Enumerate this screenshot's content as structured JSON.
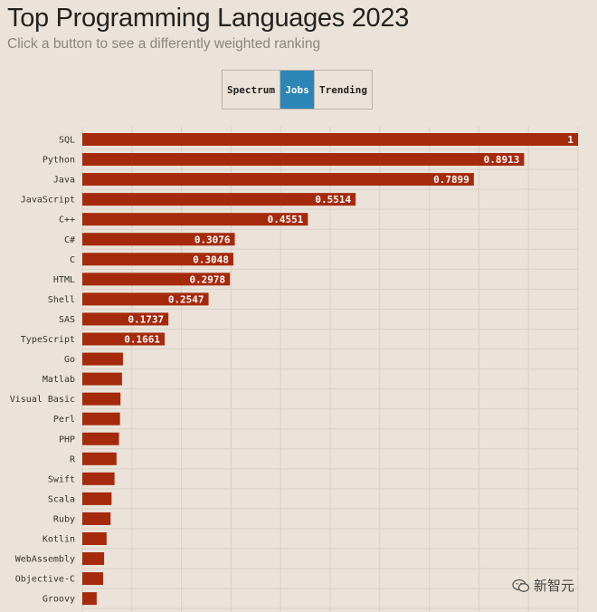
{
  "header": {
    "title": "Top Programming Languages 2023",
    "subtitle": "Click a button to see a differently weighted ranking"
  },
  "buttons": [
    {
      "label": "Spectrum",
      "active": false
    },
    {
      "label": "Jobs",
      "active": true
    },
    {
      "label": "Trending",
      "active": false
    }
  ],
  "colors": {
    "bar": "#a52a0b",
    "active_button": "#2b86b6",
    "background": "#ebe3d9",
    "grid": "#d8d1c8"
  },
  "watermark": {
    "text": "新智元",
    "icon": "wechat-icon"
  },
  "chart_data": {
    "type": "bar",
    "orientation": "horizontal",
    "title": "Top Programming Languages 2023",
    "xlim": [
      0,
      1
    ],
    "grid": true,
    "categories": [
      "SQL",
      "Python",
      "Java",
      "JavaScript",
      "C++",
      "C#",
      "C",
      "HTML",
      "Shell",
      "SAS",
      "TypeScript",
      "Go",
      "Matlab",
      "Visual Basic",
      "Perl",
      "PHP",
      "R",
      "Swift",
      "Scala",
      "Ruby",
      "Kotlin",
      "WebAssembly",
      "Objective-C",
      "Groovy"
    ],
    "values": [
      1,
      0.8913,
      0.7899,
      0.5514,
      0.4551,
      0.3076,
      0.3048,
      0.2978,
      0.2547,
      0.1737,
      0.1661,
      0.082,
      0.08,
      0.077,
      0.076,
      0.074,
      0.069,
      0.065,
      0.059,
      0.057,
      0.049,
      0.044,
      0.042,
      0.029
    ],
    "value_labels": [
      "1",
      "0.8913",
      "0.7899",
      "0.5514",
      "0.4551",
      "0.3076",
      "0.3048",
      "0.2978",
      "0.2547",
      "0.1737",
      "0.1661",
      "",
      "",
      "",
      "",
      "",
      "",
      "",
      "",
      "",
      "",
      "",
      "",
      ""
    ]
  }
}
